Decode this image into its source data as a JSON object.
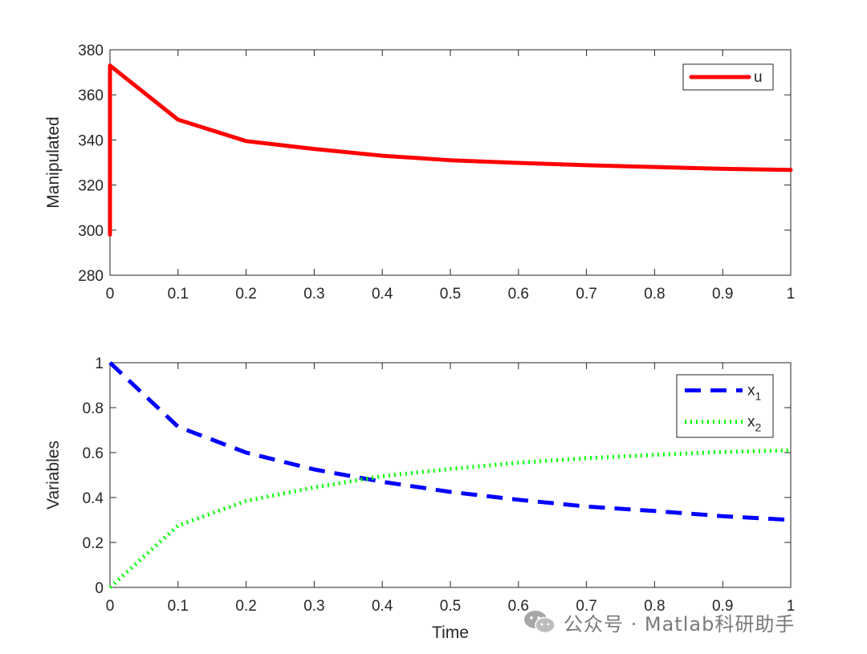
{
  "chart_data": [
    {
      "type": "line",
      "xlabel": "",
      "ylabel": "Manipulated",
      "xlim": [
        0,
        1
      ],
      "ylim": [
        280,
        380
      ],
      "xticks": [
        "0",
        "0.1",
        "0.2",
        "0.3",
        "0.4",
        "0.5",
        "0.6",
        "0.7",
        "0.8",
        "0.9",
        "1"
      ],
      "yticks": [
        "280",
        "300",
        "320",
        "340",
        "360",
        "380"
      ],
      "legend_position": "top-right",
      "grid": false,
      "series": [
        {
          "name": "u",
          "color": "#ff0000",
          "style": "solid",
          "x": [
            0,
            0,
            0.1,
            0.2,
            0.3,
            0.4,
            0.5,
            0.6,
            0.7,
            0.8,
            0.9,
            1.0
          ],
          "y": [
            298,
            373,
            349,
            339.5,
            336,
            333,
            331,
            329.8,
            328.8,
            328,
            327.2,
            326.7
          ]
        }
      ]
    },
    {
      "type": "line",
      "xlabel": "Time",
      "ylabel": "Variables",
      "xlim": [
        0,
        1
      ],
      "ylim": [
        0,
        1
      ],
      "xticks": [
        "0",
        "0.1",
        "0.2",
        "0.3",
        "0.4",
        "0.5",
        "0.6",
        "0.7",
        "0.8",
        "0.9",
        "1"
      ],
      "yticks": [
        "0",
        "0.2",
        "0.4",
        "0.6",
        "0.8",
        "1"
      ],
      "legend_position": "top-right",
      "grid": false,
      "series": [
        {
          "name": "x",
          "subscript": "1",
          "color": "#0000ff",
          "style": "dashed",
          "x": [
            0,
            0.1,
            0.2,
            0.3,
            0.4,
            0.5,
            0.6,
            0.7,
            0.8,
            0.9,
            1.0
          ],
          "y": [
            1.0,
            0.715,
            0.6,
            0.525,
            0.47,
            0.425,
            0.39,
            0.36,
            0.34,
            0.317,
            0.3
          ]
        },
        {
          "name": "x",
          "subscript": "2",
          "color": "#00ff00",
          "style": "dotted",
          "x": [
            0,
            0.1,
            0.2,
            0.3,
            0.4,
            0.5,
            0.6,
            0.7,
            0.8,
            0.9,
            1.0
          ],
          "y": [
            0.0,
            0.275,
            0.385,
            0.445,
            0.495,
            0.527,
            0.555,
            0.575,
            0.59,
            0.603,
            0.61
          ]
        }
      ]
    }
  ],
  "watermark": {
    "icon": "wechat-icon",
    "text": "公众号 · Matlab科研助手"
  }
}
